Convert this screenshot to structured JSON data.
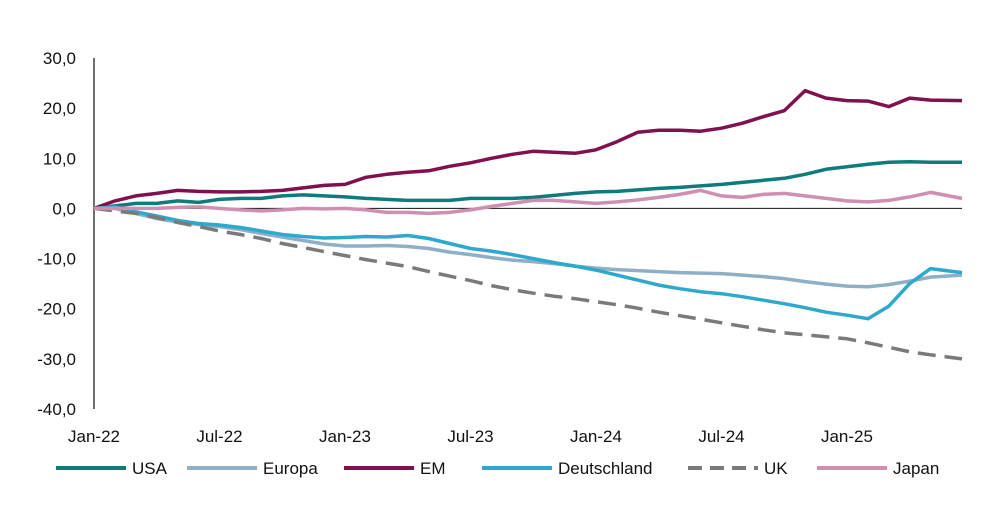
{
  "chart_data": {
    "type": "line",
    "title": "",
    "xlabel": "",
    "ylabel": "",
    "ylim": [
      -40,
      30
    ],
    "y_ticks": [
      "30,0",
      "20,0",
      "10,0",
      "0,0",
      "-10,0",
      "-20,0",
      "-30,0",
      "-40,0"
    ],
    "y_tick_values": [
      30,
      20,
      10,
      0,
      -10,
      -20,
      -30,
      -40
    ],
    "x_ticks": [
      "Jan-22",
      "Jul-22",
      "Jan-23",
      "Jul-23",
      "Jan-24",
      "Jul-24",
      "Jan-25"
    ],
    "x_tick_positions": [
      0,
      6,
      12,
      18,
      24,
      30,
      36
    ],
    "x_range": [
      0,
      41.5
    ],
    "x_unit": "months since Jan-22",
    "legend_position": "bottom",
    "series": [
      {
        "name": "USA",
        "color": "#0f7b7b",
        "dash": "solid",
        "points": [
          [
            0,
            0
          ],
          [
            1,
            0.5
          ],
          [
            2,
            1
          ],
          [
            3,
            1
          ],
          [
            4,
            1.5
          ],
          [
            5,
            1.2
          ],
          [
            6,
            1.8
          ],
          [
            7,
            2
          ],
          [
            8,
            2
          ],
          [
            9,
            2.5
          ],
          [
            10,
            2.7
          ],
          [
            11,
            2.5
          ],
          [
            12,
            2.3
          ],
          [
            13,
            2
          ],
          [
            14,
            1.8
          ],
          [
            15,
            1.6
          ],
          [
            16,
            1.6
          ],
          [
            17,
            1.6
          ],
          [
            18,
            2
          ],
          [
            19,
            2
          ],
          [
            20,
            2
          ],
          [
            21,
            2.2
          ],
          [
            22,
            2.6
          ],
          [
            23,
            3
          ],
          [
            24,
            3.3
          ],
          [
            25,
            3.4
          ],
          [
            26,
            3.7
          ],
          [
            27,
            4
          ],
          [
            28,
            4.2
          ],
          [
            29,
            4.5
          ],
          [
            30,
            4.8
          ],
          [
            31,
            5.2
          ],
          [
            32,
            5.6
          ],
          [
            33,
            6
          ],
          [
            34,
            6.8
          ],
          [
            35,
            7.8
          ],
          [
            36,
            8.3
          ],
          [
            37,
            8.8
          ],
          [
            38,
            9.2
          ],
          [
            39,
            9.3
          ],
          [
            40,
            9.2
          ],
          [
            41.5,
            9.2
          ]
        ]
      },
      {
        "name": "Europa",
        "color": "#8fafc6",
        "dash": "solid",
        "points": [
          [
            0,
            0
          ],
          [
            1,
            0
          ],
          [
            2,
            -1
          ],
          [
            3,
            -2
          ],
          [
            4,
            -2.7
          ],
          [
            5,
            -3.2
          ],
          [
            6,
            -3.6
          ],
          [
            7,
            -4.2
          ],
          [
            8,
            -5
          ],
          [
            9,
            -5.7
          ],
          [
            10,
            -6.4
          ],
          [
            11,
            -7.1
          ],
          [
            12,
            -7.5
          ],
          [
            13,
            -7.5
          ],
          [
            14,
            -7.4
          ],
          [
            15,
            -7.6
          ],
          [
            16,
            -8
          ],
          [
            17,
            -8.7
          ],
          [
            18,
            -9.2
          ],
          [
            19,
            -9.8
          ],
          [
            20,
            -10.3
          ],
          [
            21,
            -10.6
          ],
          [
            22,
            -11
          ],
          [
            23,
            -11.5
          ],
          [
            24,
            -11.9
          ],
          [
            25,
            -12.2
          ],
          [
            26,
            -12.4
          ],
          [
            27,
            -12.6
          ],
          [
            28,
            -12.8
          ],
          [
            29,
            -12.9
          ],
          [
            30,
            -13
          ],
          [
            31,
            -13.3
          ],
          [
            32,
            -13.6
          ],
          [
            33,
            -14
          ],
          [
            34,
            -14.6
          ],
          [
            35,
            -15.1
          ],
          [
            36,
            -15.5
          ],
          [
            37,
            -15.6
          ],
          [
            38,
            -15.2
          ],
          [
            39,
            -14.5
          ],
          [
            40,
            -13.7
          ],
          [
            41.5,
            -13.3
          ]
        ]
      },
      {
        "name": "EM",
        "color": "#80104f",
        "dash": "solid",
        "points": [
          [
            0,
            0
          ],
          [
            1,
            1.5
          ],
          [
            2,
            2.5
          ],
          [
            3,
            3
          ],
          [
            4,
            3.6
          ],
          [
            5,
            3.4
          ],
          [
            6,
            3.3
          ],
          [
            7,
            3.3
          ],
          [
            8,
            3.4
          ],
          [
            9,
            3.6
          ],
          [
            10,
            4.1
          ],
          [
            11,
            4.6
          ],
          [
            12,
            4.8
          ],
          [
            13,
            6.2
          ],
          [
            14,
            6.8
          ],
          [
            15,
            7.2
          ],
          [
            16,
            7.5
          ],
          [
            17,
            8.4
          ],
          [
            18,
            9.1
          ],
          [
            19,
            10
          ],
          [
            20,
            10.8
          ],
          [
            21,
            11.4
          ],
          [
            22,
            11.2
          ],
          [
            23,
            11
          ],
          [
            24,
            11.7
          ],
          [
            25,
            13.3
          ],
          [
            26,
            15.2
          ],
          [
            27,
            15.6
          ],
          [
            28,
            15.6
          ],
          [
            29,
            15.4
          ],
          [
            30,
            16
          ],
          [
            31,
            17
          ],
          [
            32,
            18.3
          ],
          [
            33,
            19.5
          ],
          [
            34,
            23.5
          ],
          [
            35,
            22
          ],
          [
            36,
            21.5
          ],
          [
            37,
            21.4
          ],
          [
            38,
            20.3
          ],
          [
            39,
            22
          ],
          [
            40,
            21.6
          ],
          [
            41.5,
            21.5
          ]
        ]
      },
      {
        "name": "Deutschland",
        "color": "#2ea8cc",
        "dash": "solid",
        "points": [
          [
            0,
            0
          ],
          [
            1,
            0.3
          ],
          [
            2,
            -0.7
          ],
          [
            3,
            -1.5
          ],
          [
            4,
            -2.4
          ],
          [
            5,
            -3
          ],
          [
            6,
            -3.3
          ],
          [
            7,
            -3.8
          ],
          [
            8,
            -4.5
          ],
          [
            9,
            -5.2
          ],
          [
            10,
            -5.6
          ],
          [
            11,
            -5.9
          ],
          [
            12,
            -5.8
          ],
          [
            13,
            -5.6
          ],
          [
            14,
            -5.7
          ],
          [
            15,
            -5.4
          ],
          [
            16,
            -6
          ],
          [
            17,
            -7
          ],
          [
            18,
            -8
          ],
          [
            19,
            -8.5
          ],
          [
            20,
            -9.2
          ],
          [
            21,
            -10
          ],
          [
            22,
            -10.8
          ],
          [
            23,
            -11.5
          ],
          [
            24,
            -12.3
          ],
          [
            25,
            -13.3
          ],
          [
            26,
            -14.3
          ],
          [
            27,
            -15.3
          ],
          [
            28,
            -16
          ],
          [
            29,
            -16.6
          ],
          [
            30,
            -17
          ],
          [
            31,
            -17.6
          ],
          [
            32,
            -18.3
          ],
          [
            33,
            -19
          ],
          [
            34,
            -19.8
          ],
          [
            35,
            -20.7
          ],
          [
            36,
            -21.3
          ],
          [
            37,
            -22
          ],
          [
            38,
            -19.5
          ],
          [
            39,
            -15
          ],
          [
            40,
            -12
          ],
          [
            41.5,
            -12.8
          ]
        ]
      },
      {
        "name": "UK",
        "color": "#7a7a7a",
        "dash": "dashed",
        "points": [
          [
            0,
            0
          ],
          [
            1,
            -0.5
          ],
          [
            2,
            -1
          ],
          [
            3,
            -1.8
          ],
          [
            4,
            -2.8
          ],
          [
            5,
            -3.6
          ],
          [
            6,
            -4.5
          ],
          [
            7,
            -5.2
          ],
          [
            8,
            -6
          ],
          [
            9,
            -7
          ],
          [
            10,
            -7.8
          ],
          [
            11,
            -8.6
          ],
          [
            12,
            -9.4
          ],
          [
            13,
            -10.2
          ],
          [
            14,
            -10.9
          ],
          [
            15,
            -11.6
          ],
          [
            16,
            -12.6
          ],
          [
            17,
            -13.5
          ],
          [
            18,
            -14.4
          ],
          [
            19,
            -15.4
          ],
          [
            20,
            -16.2
          ],
          [
            21,
            -16.9
          ],
          [
            22,
            -17.5
          ],
          [
            23,
            -18
          ],
          [
            24,
            -18.6
          ],
          [
            25,
            -19.2
          ],
          [
            26,
            -19.9
          ],
          [
            27,
            -20.7
          ],
          [
            28,
            -21.4
          ],
          [
            29,
            -22.1
          ],
          [
            30,
            -22.8
          ],
          [
            31,
            -23.5
          ],
          [
            32,
            -24.2
          ],
          [
            33,
            -24.8
          ],
          [
            34,
            -25.2
          ],
          [
            35,
            -25.6
          ],
          [
            36,
            -26
          ],
          [
            37,
            -26.8
          ],
          [
            38,
            -27.7
          ],
          [
            39,
            -28.6
          ],
          [
            40,
            -29.2
          ],
          [
            41.5,
            -30
          ]
        ]
      },
      {
        "name": "Japan",
        "color": "#cf8fb1",
        "dash": "solid",
        "points": [
          [
            0,
            0
          ],
          [
            1,
            0
          ],
          [
            2,
            0
          ],
          [
            3,
            0
          ],
          [
            4,
            0.2
          ],
          [
            5,
            0.3
          ],
          [
            6,
            0
          ],
          [
            7,
            -0.3
          ],
          [
            8,
            -0.5
          ],
          [
            9,
            -0.3
          ],
          [
            10,
            0
          ],
          [
            11,
            -0.1
          ],
          [
            12,
            0
          ],
          [
            13,
            -0.3
          ],
          [
            14,
            -0.8
          ],
          [
            15,
            -0.8
          ],
          [
            16,
            -1
          ],
          [
            17,
            -0.8
          ],
          [
            18,
            -0.3
          ],
          [
            19,
            0.4
          ],
          [
            20,
            1
          ],
          [
            21,
            1.6
          ],
          [
            22,
            1.6
          ],
          [
            23,
            1.3
          ],
          [
            24,
            1
          ],
          [
            25,
            1.3
          ],
          [
            26,
            1.7
          ],
          [
            27,
            2.2
          ],
          [
            28,
            2.8
          ],
          [
            29,
            3.6
          ],
          [
            30,
            2.5
          ],
          [
            31,
            2.2
          ],
          [
            32,
            2.8
          ],
          [
            33,
            3
          ],
          [
            34,
            2.5
          ],
          [
            35,
            2
          ],
          [
            36,
            1.5
          ],
          [
            37,
            1.3
          ],
          [
            38,
            1.6
          ],
          [
            39,
            2.3
          ],
          [
            40,
            3.2
          ],
          [
            41.5,
            2
          ]
        ]
      }
    ]
  }
}
